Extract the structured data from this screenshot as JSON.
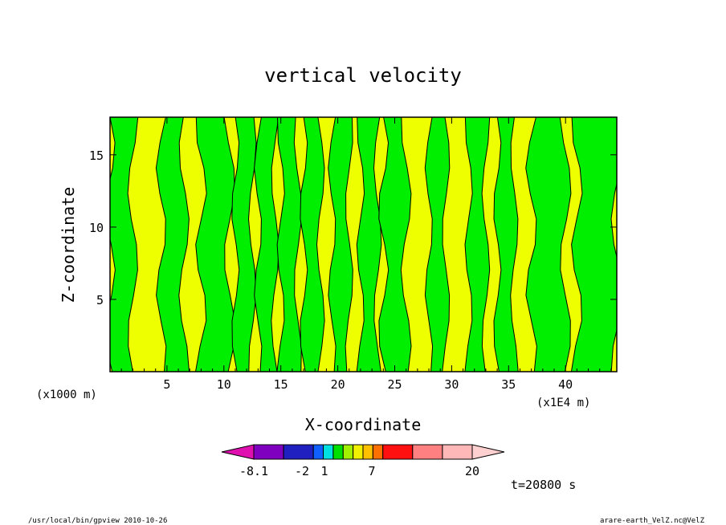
{
  "chart_data": {
    "type": "heatmap",
    "title": "vertical velocity",
    "xlabel": "X-coordinate",
    "ylabel": "Z-coordinate",
    "x_unit_left": "(x1000 m)",
    "x_unit_right": "(x1E4 m)",
    "xlim": [
      0,
      44.5
    ],
    "ylim": [
      0,
      17.6
    ],
    "x_ticks": [
      5,
      10,
      15,
      20,
      25,
      30,
      35,
      40
    ],
    "y_ticks": [
      5,
      10,
      15
    ],
    "x_tick_labels": [
      "5",
      "10",
      "15",
      "20",
      "25",
      "30",
      "35",
      "40"
    ],
    "y_tick_labels": [
      "5",
      "10",
      "15"
    ],
    "time_label": "t=20800 s",
    "colorbar": {
      "colors": [
        "#e010b0",
        "#8000c0",
        "#2020c0",
        "#1060ff",
        "#00e0e0",
        "#00e000",
        "#a0f000",
        "#f0f000",
        "#ffc000",
        "#ff7000",
        "#ff1010",
        "#ff8080",
        "#ffb8b8",
        "#ffd0d0"
      ],
      "tick_labels": [
        "-8.1",
        "-2",
        "1",
        "7",
        "20"
      ]
    },
    "fields": {
      "negative_color": "#00ee00",
      "positive_color": "#eeff00"
    },
    "green_regions_x": [
      [
        0,
        2
      ],
      [
        4.5,
        6.5
      ],
      [
        8,
        10.5
      ],
      [
        11,
        12.5
      ],
      [
        13,
        14.5
      ],
      [
        15,
        16.5
      ],
      [
        17,
        18.5
      ],
      [
        19.5,
        21
      ],
      [
        22,
        23.5
      ],
      [
        24,
        26
      ],
      [
        28,
        29.5
      ],
      [
        31.5,
        33
      ],
      [
        34,
        35.5
      ],
      [
        37,
        40
      ],
      [
        41,
        44.5
      ]
    ]
  },
  "footer": {
    "left": "/usr/local/bin/gpview  2010-10-26",
    "right": "arare-earth_VelZ.nc@VelZ"
  }
}
